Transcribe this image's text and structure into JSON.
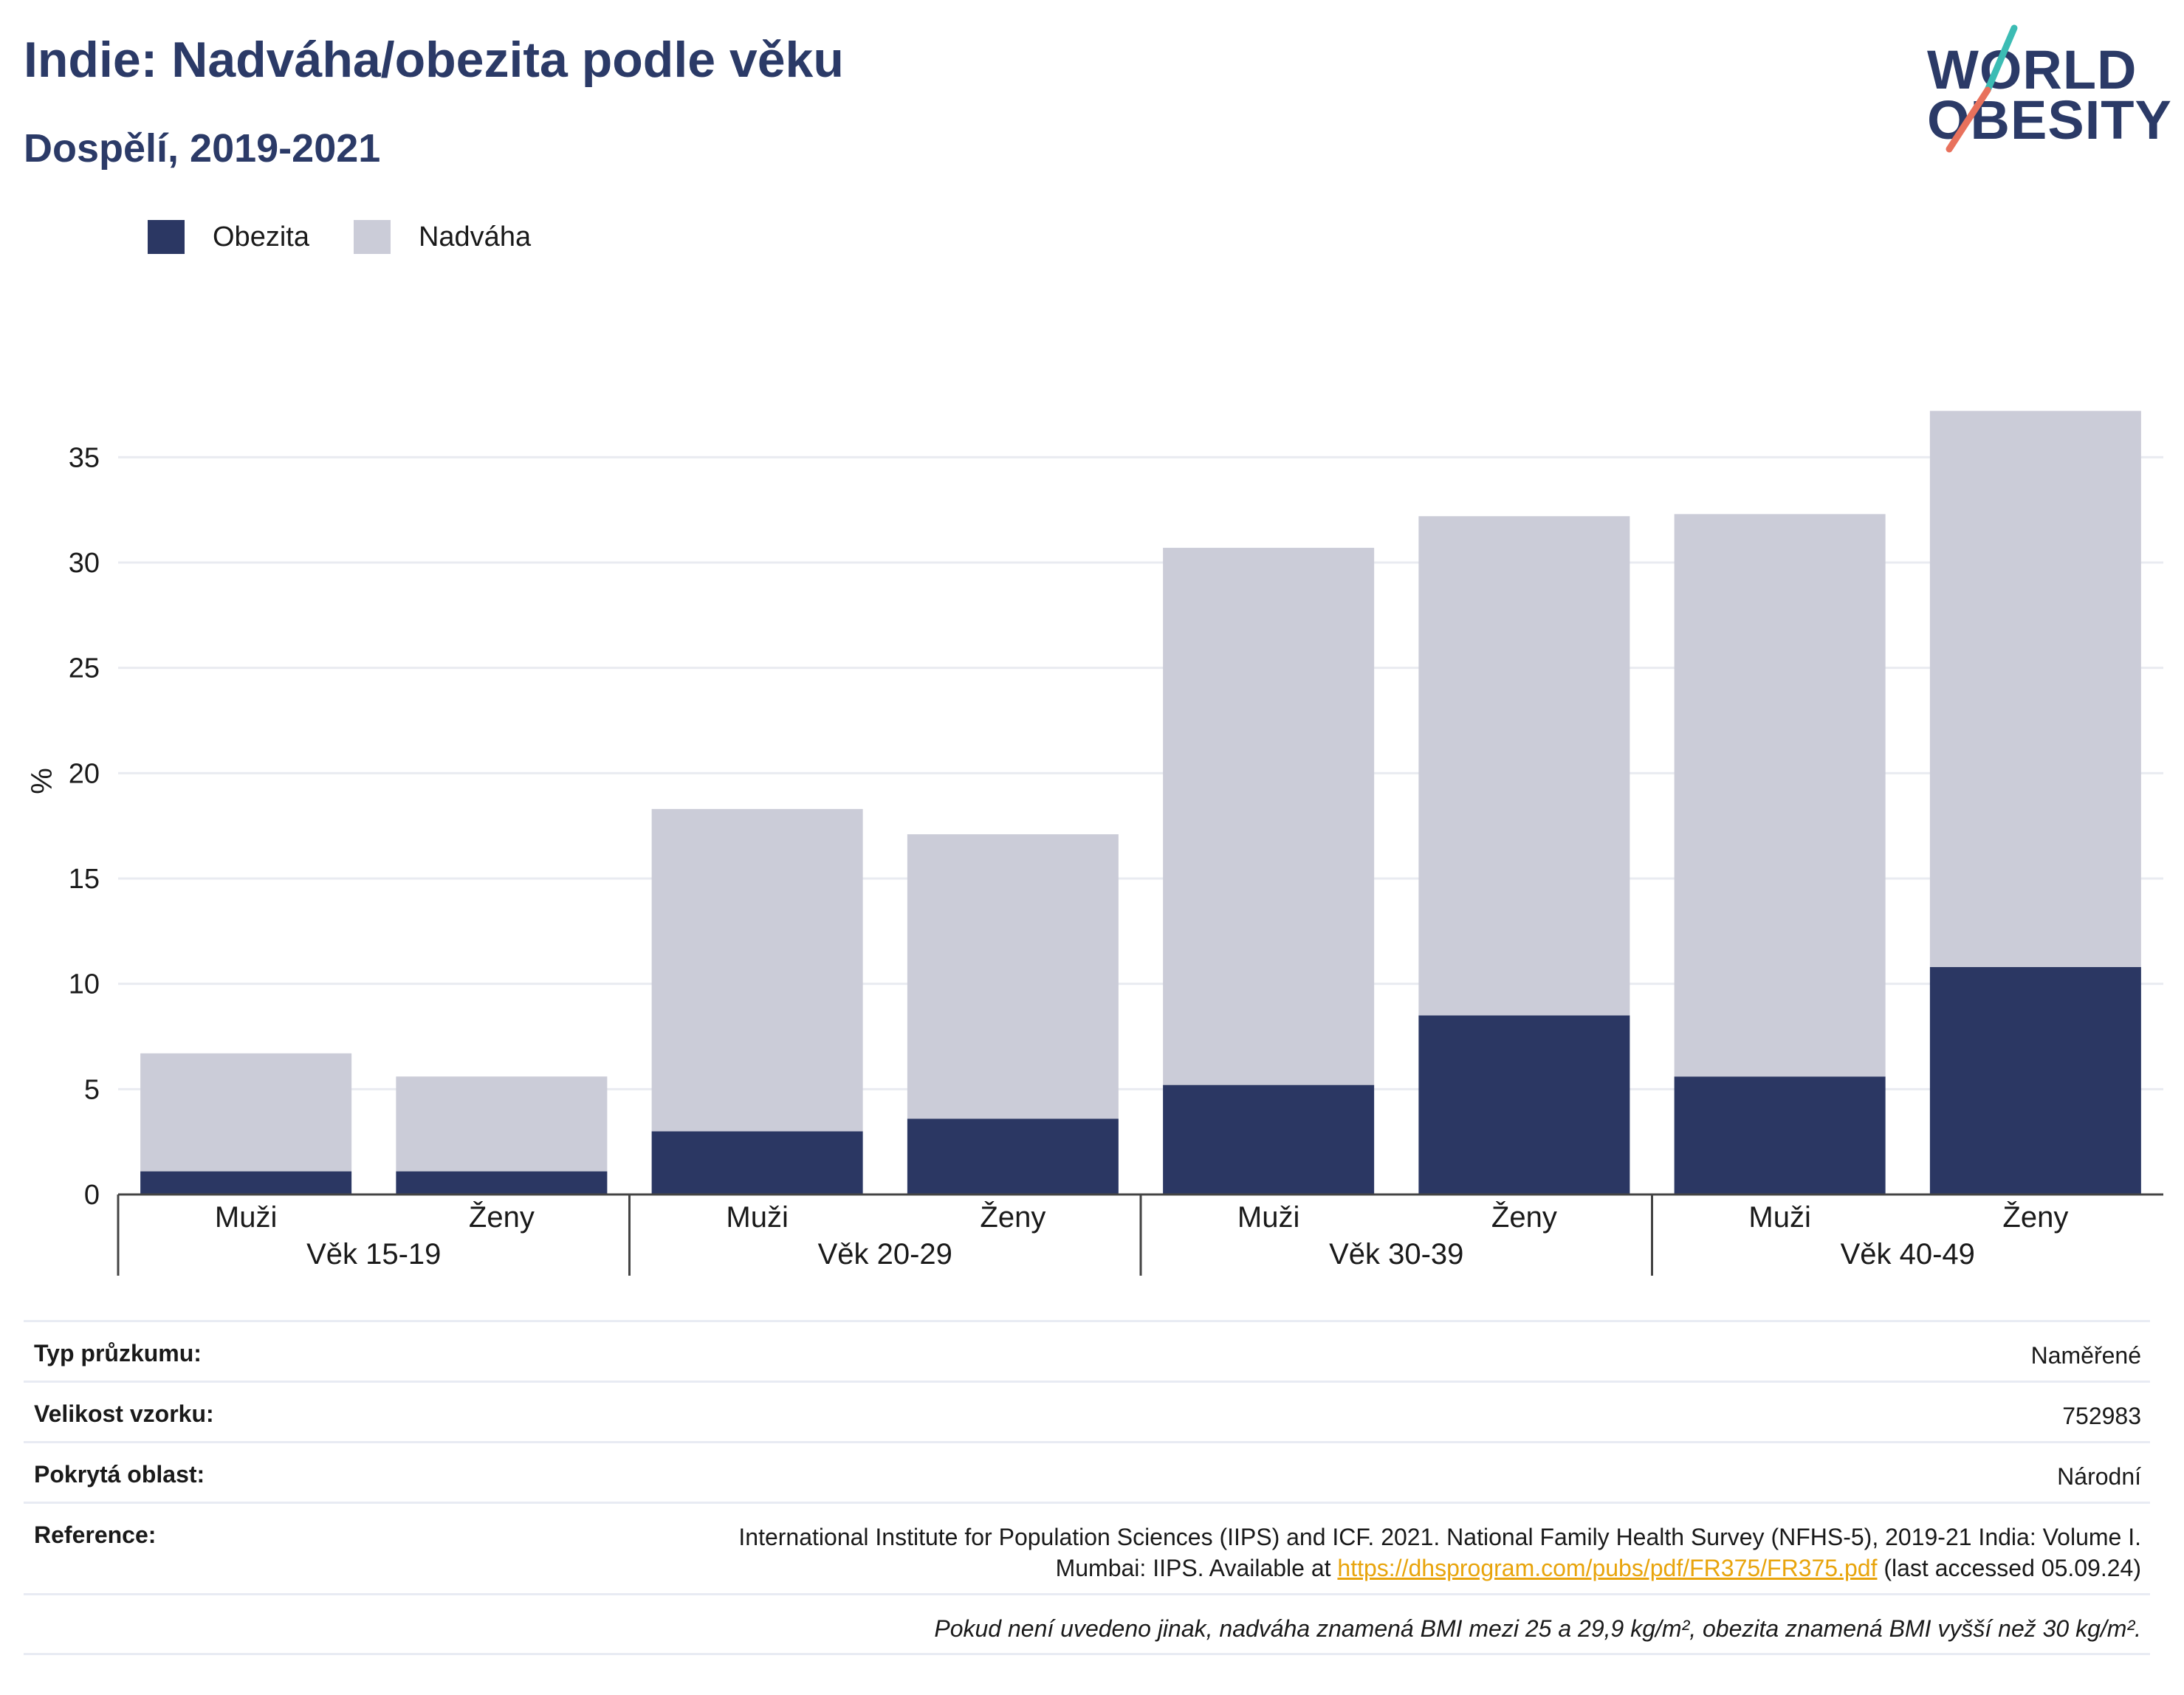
{
  "header": {
    "title": "Indie: Nadváha/obezita podle věku",
    "subtitle": "Dospělí, 2019-2021"
  },
  "logo": {
    "line1": "WORLD",
    "line2": "OBESITY"
  },
  "colors": {
    "obesity": "#2b3763",
    "overweight": "#cbccd8",
    "brand_text": "#2b3a67",
    "logo_teal": "#3cbcb4",
    "logo_coral": "#e8715c",
    "link": "#e8a40c"
  },
  "legend": [
    {
      "label": "Obezita",
      "color": "#2b3763"
    },
    {
      "label": "Nadváha",
      "color": "#cbccd8"
    }
  ],
  "chart_data": {
    "type": "bar",
    "stacked": true,
    "ylabel": "%",
    "ylim": [
      0,
      37.5
    ],
    "yticks": [
      0,
      5,
      10,
      15,
      20,
      25,
      30,
      35
    ],
    "grid": true,
    "legend_position": "top-left",
    "groups": [
      {
        "label": "Věk 15-19",
        "categories": [
          "Muži",
          "Ženy"
        ]
      },
      {
        "label": "Věk 20-29",
        "categories": [
          "Muži",
          "Ženy"
        ]
      },
      {
        "label": "Věk 30-39",
        "categories": [
          "Muži",
          "Ženy"
        ]
      },
      {
        "label": "Věk 40-49",
        "categories": [
          "Muži",
          "Ženy"
        ]
      }
    ],
    "categories": [
      "Muži",
      "Ženy",
      "Muži",
      "Ženy",
      "Muži",
      "Ženy",
      "Muži",
      "Ženy"
    ],
    "series": [
      {
        "name": "Obezita",
        "values": [
          1.1,
          1.1,
          3.0,
          3.6,
          5.2,
          8.5,
          5.6,
          10.8
        ]
      },
      {
        "name": "Nadváha",
        "values": [
          5.6,
          4.5,
          15.3,
          13.5,
          25.5,
          23.7,
          26.7,
          26.4
        ]
      }
    ]
  },
  "info": {
    "survey_type": {
      "label": "Typ průzkumu:",
      "value": "Naměřené"
    },
    "sample_size": {
      "label": "Velikost vzorku:",
      "value": "752983"
    },
    "coverage": {
      "label": "Pokrytá oblast:",
      "value": "Národní"
    },
    "reference": {
      "label": "Reference:",
      "line1": "International Institute for Population Sciences (IIPS) and ICF. 2021. National Family Health Survey (NFHS-5), 2019-21 India: Volume I.",
      "line2_prefix": "Mumbai: IIPS. Available at",
      "link": "https://dhsprogram.com/pubs/pdf/FR375/FR375.pdf",
      "line2_suffix": "(last accessed 05.09.24)"
    },
    "footnote": "Pokud není uvedeno jinak, nadváha znamená BMI mezi 25 a 29,9 kg/m², obezita znamená BMI vyšší než 30 kg/m²."
  }
}
